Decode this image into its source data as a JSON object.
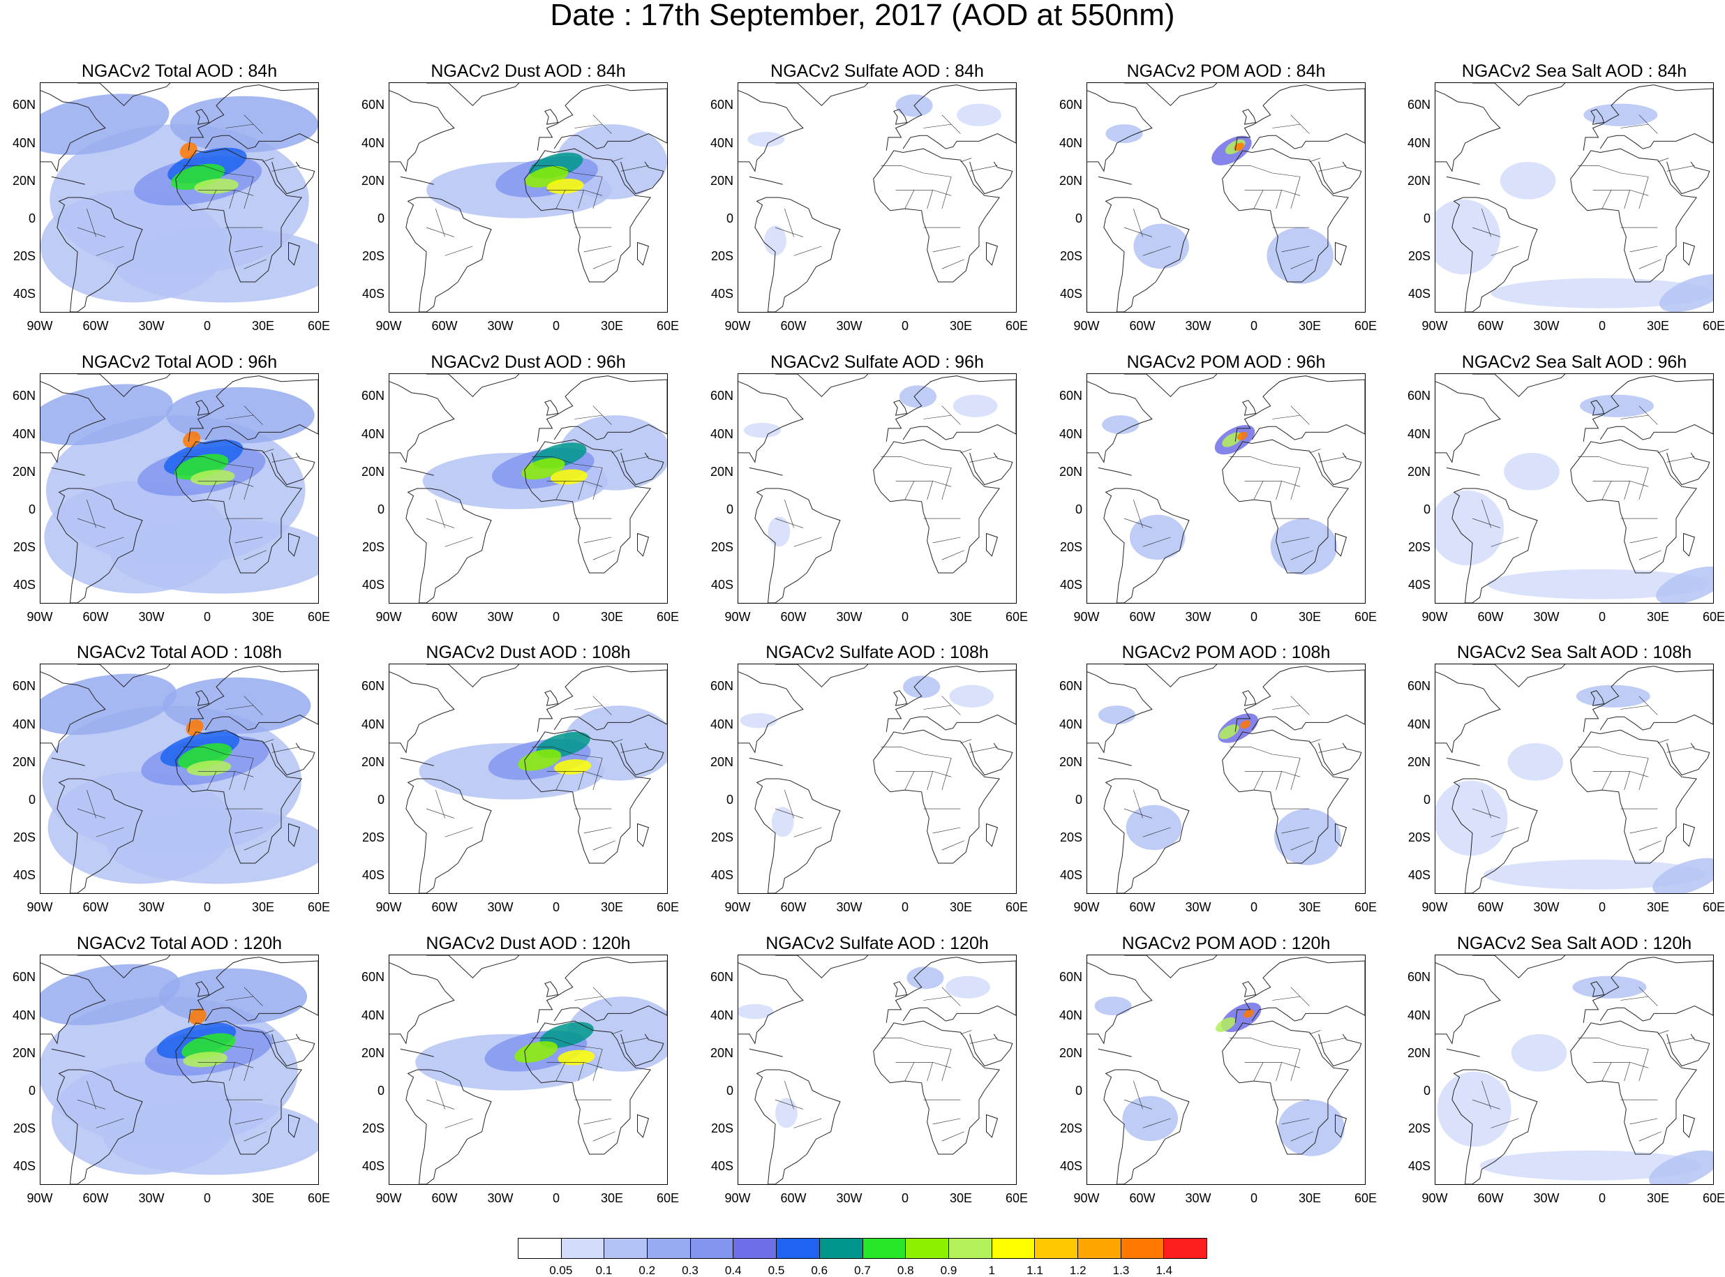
{
  "title": "Date : 17th September, 2017 (AOD at 550nm)",
  "lat_ticks": [
    "60N",
    "40N",
    "20N",
    "0",
    "20S",
    "40S"
  ],
  "lon_ticks": [
    "90W",
    "60W",
    "30W",
    "0",
    "30E",
    "60E"
  ],
  "rows": [
    {
      "hour": "84h",
      "panels": [
        {
          "title": "NGACv2 Total AOD : 84h",
          "species": "total"
        },
        {
          "title": "NGACv2 Dust AOD : 84h",
          "species": "dust"
        },
        {
          "title": "NGACv2 Sulfate AOD : 84h",
          "species": "sulfate"
        },
        {
          "title": "NGACv2 POM AOD : 84h",
          "species": "pom"
        },
        {
          "title": "NGACv2 Sea Salt AOD : 84h",
          "species": "seasalt"
        }
      ]
    },
    {
      "hour": "96h",
      "panels": [
        {
          "title": "NGACv2 Total AOD : 96h",
          "species": "total"
        },
        {
          "title": "NGACv2 Dust AOD : 96h",
          "species": "dust"
        },
        {
          "title": "NGACv2 Sulfate AOD : 96h",
          "species": "sulfate"
        },
        {
          "title": "NGACv2 POM AOD : 96h",
          "species": "pom"
        },
        {
          "title": "NGACv2 Sea Salt AOD : 96h",
          "species": "seasalt"
        }
      ]
    },
    {
      "hour": "108h",
      "panels": [
        {
          "title": "NGACv2 Total AOD : 108h",
          "species": "total"
        },
        {
          "title": "NGACv2 Dust AOD : 108h",
          "species": "dust"
        },
        {
          "title": "NGACv2 Sulfate AOD : 108h",
          "species": "sulfate"
        },
        {
          "title": "NGACv2 POM AOD : 108h",
          "species": "pom"
        },
        {
          "title": "NGACv2 Sea Salt AOD : 108h",
          "species": "seasalt"
        }
      ]
    },
    {
      "hour": "120h",
      "panels": [
        {
          "title": "NGACv2 Total AOD : 120h",
          "species": "total"
        },
        {
          "title": "NGACv2 Dust AOD : 120h",
          "species": "dust"
        },
        {
          "title": "NGACv2 Sulfate AOD : 120h",
          "species": "sulfate"
        },
        {
          "title": "NGACv2 POM AOD : 120h",
          "species": "pom"
        },
        {
          "title": "NGACv2 Sea Salt  AOD : 120h",
          "species": "seasalt"
        }
      ]
    }
  ],
  "colorbar": {
    "colors": [
      "#ffffff",
      "#d2dcfa",
      "#b4c3f5",
      "#96abf0",
      "#8296f0",
      "#6e6ee6",
      "#1e64f0",
      "#00968c",
      "#28e628",
      "#8cf000",
      "#b4f05a",
      "#ffff00",
      "#ffc800",
      "#ffa500",
      "#ff7800",
      "#ff1e1e"
    ],
    "labels": [
      "0.05",
      "0.1",
      "0.2",
      "0.3",
      "0.4",
      "0.5",
      "0.6",
      "0.7",
      "0.8",
      "0.9",
      "1",
      "1.1",
      "1.2",
      "1.3",
      "1.4"
    ]
  }
}
